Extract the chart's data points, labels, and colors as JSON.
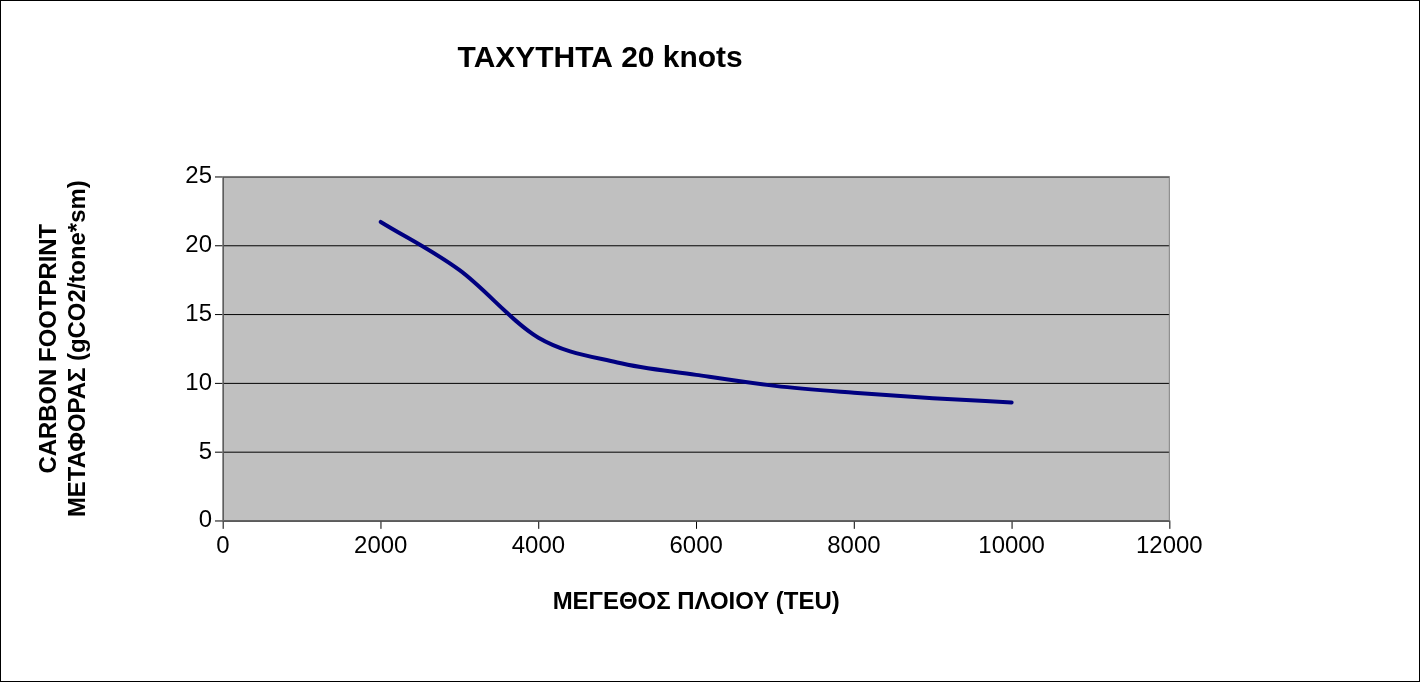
{
  "chart_data": {
    "type": "line",
    "title": "ΤΑΧΥΤΗΤΑ 20 knots",
    "xlabel": "ΜΕΓΕΘΟΣ ΠΛΟΙΟΥ (TEU)",
    "ylabel": "CARBON FOOTPRINT\nΜΕΤΑΦΟΡΑΣ (gCO2/tone*sm)",
    "x": [
      2000,
      3000,
      4000,
      5000,
      6000,
      7000,
      8000,
      9000,
      10000
    ],
    "series": [
      {
        "color": "#000080",
        "values": [
          21.7,
          18.2,
          13.3,
          11.5,
          10.6,
          9.8,
          9.3,
          8.9,
          8.6
        ]
      }
    ],
    "xlim": [
      0,
      12000
    ],
    "xticks": [
      0,
      2000,
      4000,
      6000,
      8000,
      10000,
      12000
    ],
    "ylim": [
      0,
      25
    ],
    "yticks": [
      0,
      5,
      10,
      15,
      20,
      25
    ],
    "grid": "y",
    "legend": false,
    "marker": "none",
    "line_style": "solid"
  }
}
